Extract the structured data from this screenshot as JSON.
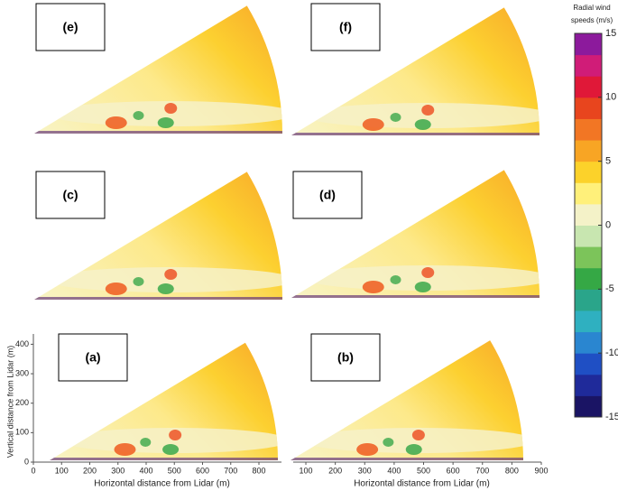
{
  "panels": [
    {
      "label": "(e)"
    },
    {
      "label": "(f)"
    },
    {
      "label": "(c)"
    },
    {
      "label": "(d)"
    },
    {
      "label": "(a)",
      "x_label": "Horizontal distance from Lidar (m)",
      "y_label": "Vertical distance from Lidar (m)",
      "xlim": [
        0,
        880
      ],
      "xticks": [
        0,
        100,
        200,
        300,
        400,
        500,
        600,
        700,
        800
      ],
      "ylim": [
        0,
        435
      ],
      "yticks": [
        0,
        100,
        200,
        300,
        400
      ]
    },
    {
      "label": "(b)",
      "x_label": "Horizontal distance from Lidar (m)",
      "xlim": [
        57,
        900
      ],
      "xticks": [
        100,
        200,
        300,
        400,
        500,
        600,
        700,
        800,
        900
      ]
    }
  ],
  "colorbar": {
    "title": "Radial wind speeds (m/s)",
    "lim": [
      -15,
      15
    ],
    "ticks": [
      15,
      10,
      5,
      0,
      -5,
      -10,
      -15
    ],
    "colors": [
      "#1a1464",
      "#1f2a9a",
      "#1f4fc4",
      "#2a86d0",
      "#2fb0c0",
      "#2aa58a",
      "#35a845",
      "#7cc45a",
      "#c8e6b0",
      "#f4f2c8",
      "#fff07a",
      "#fcd22a",
      "#f8a524",
      "#f27624",
      "#e8451e",
      "#e01838",
      "#d01c78",
      "#8c1a9c"
    ]
  }
}
